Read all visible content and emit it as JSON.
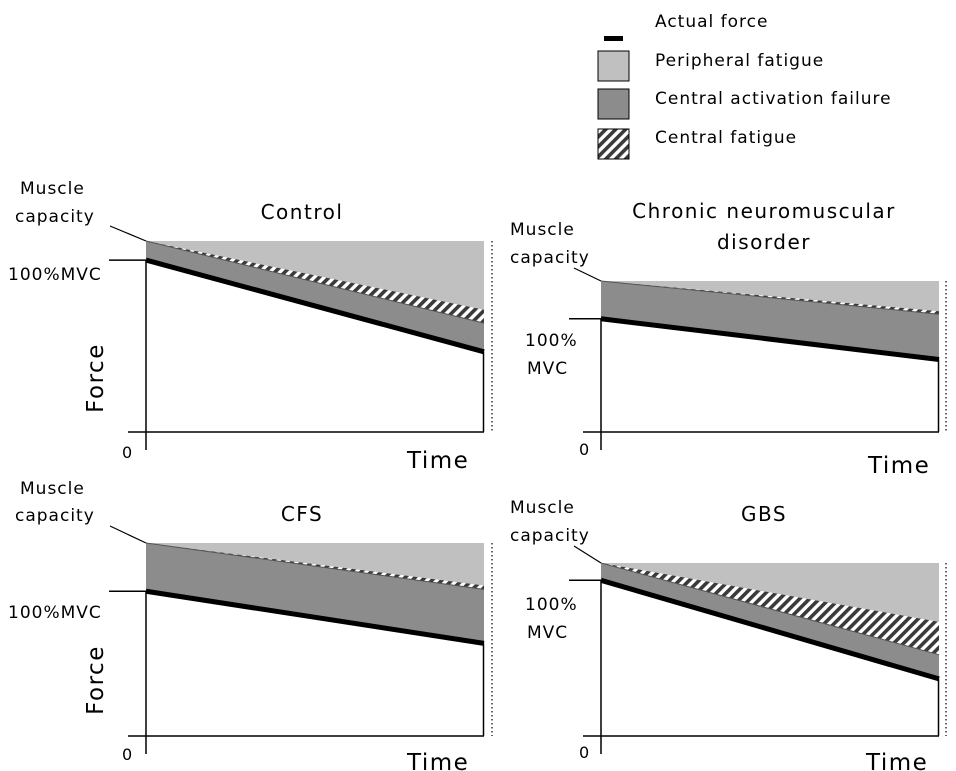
{
  "legend": {
    "items": [
      {
        "key": "actual",
        "label": "Actual force"
      },
      {
        "key": "peripheral",
        "label": "Peripheral fatigue"
      },
      {
        "key": "central_failure",
        "label": "Central activation failure"
      },
      {
        "key": "central_fatigue",
        "label": "Central fatigue"
      }
    ]
  },
  "colors": {
    "peripheral": "#c0c0c0",
    "central_failure": "#8c8c8c",
    "actual": "#000000",
    "hatch_light": "#ffffff",
    "hatch_dark": "#3a3a3a"
  },
  "panels": [
    {
      "id": "control",
      "title_lines": [
        "Control"
      ],
      "capacity_lines": [
        "Muscle",
        "capacity"
      ],
      "mvc_lines": [
        "100%MVC"
      ],
      "ylabel": "Force",
      "xlabel": "Time",
      "zero": "0",
      "capacity": 100,
      "mvc": 90,
      "end_force": 42,
      "end_central_failure": 57,
      "end_central_fatigue": 64
    },
    {
      "id": "chronic",
      "title_lines": [
        "Chronic neuromuscular",
        "disorder"
      ],
      "capacity_lines": [
        "Muscle",
        "capacity"
      ],
      "mvc_lines": [
        "100%",
        "MVC"
      ],
      "ylabel": "",
      "xlabel": "Time",
      "zero": "0",
      "capacity": 100,
      "mvc": 75,
      "end_force": 48,
      "end_central_failure": 78,
      "end_central_fatigue": 80
    },
    {
      "id": "cfs",
      "title_lines": [
        "CFS"
      ],
      "capacity_lines": [
        "Muscle",
        "capacity"
      ],
      "mvc_lines": [
        "100%MVC"
      ],
      "ylabel": "Force",
      "xlabel": "Time",
      "zero": "0",
      "capacity": 100,
      "mvc": 75,
      "end_force": 48,
      "end_central_failure": 76,
      "end_central_fatigue": 78
    },
    {
      "id": "gbs",
      "title_lines": [
        "GBS"
      ],
      "capacity_lines": [
        "Muscle",
        "capacity"
      ],
      "mvc_lines": [
        "100%",
        "MVC"
      ],
      "ylabel": "",
      "xlabel": "Time",
      "zero": "0",
      "capacity": 100,
      "mvc": 90,
      "end_force": 33,
      "end_central_failure": 47,
      "end_central_fatigue": 66
    }
  ]
}
